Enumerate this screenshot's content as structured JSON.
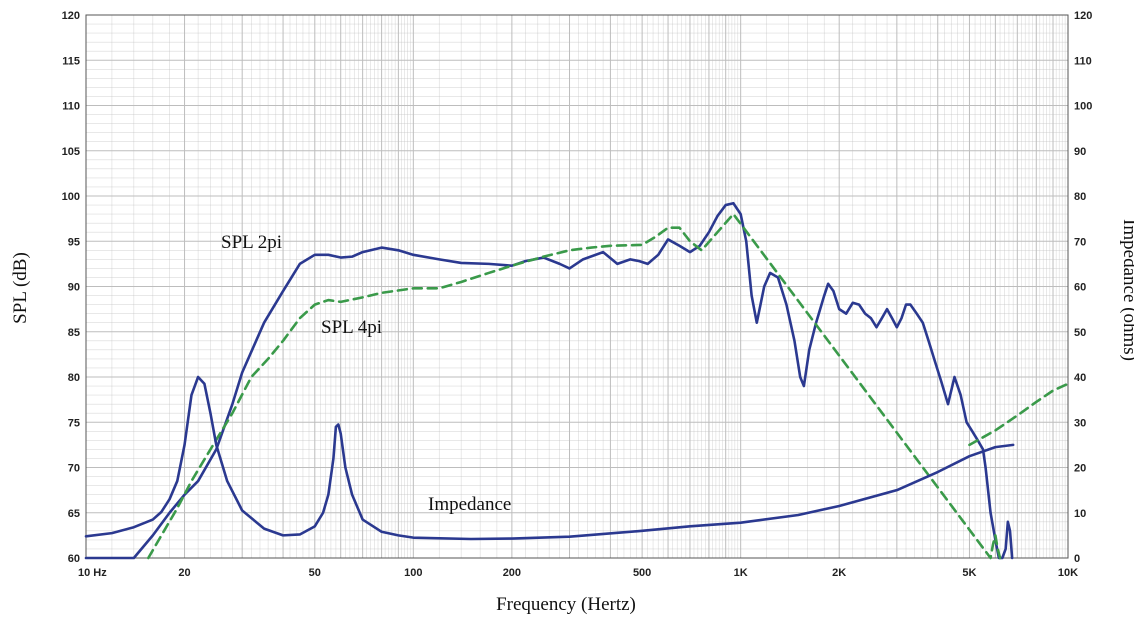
{
  "chart_data": {
    "type": "line",
    "xlabel": "Frequency (Hertz)",
    "ylabel_left": "SPL (dB)",
    "ylabel_right": "Impedance (ohms)",
    "x_scale": "log",
    "xlim": [
      10,
      10000
    ],
    "ylim_left": [
      60,
      120
    ],
    "ylim_right": [
      0,
      120
    ],
    "x_ticks": [
      {
        "value": 10,
        "label": "10  Hz"
      },
      {
        "value": 20,
        "label": "20"
      },
      {
        "value": 50,
        "label": "50"
      },
      {
        "value": 100,
        "label": "100"
      },
      {
        "value": 200,
        "label": "200"
      },
      {
        "value": 500,
        "label": "500"
      },
      {
        "value": 1000,
        "label": "1K"
      },
      {
        "value": 2000,
        "label": "2K"
      },
      {
        "value": 5000,
        "label": "5K"
      },
      {
        "value": 10000,
        "label": "10K"
      }
    ],
    "y_ticks_left": [
      60,
      65,
      70,
      75,
      80,
      85,
      90,
      95,
      100,
      105,
      110,
      115,
      120
    ],
    "y_ticks_right": [
      0,
      10,
      20,
      30,
      40,
      50,
      60,
      70,
      80,
      90,
      100,
      110,
      120
    ],
    "grid": true,
    "colors": {
      "spl_2pi": "#2b3990",
      "spl_4pi": "#3a9a4a",
      "impedance": "#2b3990",
      "grid": "#bdbdbd"
    },
    "series": [
      {
        "name": "SPL 2pi",
        "axis": "left",
        "style": "solid",
        "points": [
          [
            10,
            60
          ],
          [
            14,
            60
          ],
          [
            16,
            62.5
          ],
          [
            18,
            65
          ],
          [
            20,
            67
          ],
          [
            22,
            68.5
          ],
          [
            25,
            72
          ],
          [
            28,
            77
          ],
          [
            30,
            80.5
          ],
          [
            35,
            86
          ],
          [
            40,
            89.5
          ],
          [
            45,
            92.5
          ],
          [
            50,
            93.5
          ],
          [
            55,
            93.5
          ],
          [
            60,
            93.2
          ],
          [
            65,
            93.3
          ],
          [
            70,
            93.8
          ],
          [
            80,
            94.3
          ],
          [
            90,
            94
          ],
          [
            100,
            93.5
          ],
          [
            120,
            93
          ],
          [
            140,
            92.6
          ],
          [
            170,
            92.5
          ],
          [
            200,
            92.3
          ],
          [
            220,
            92.8
          ],
          [
            250,
            93.2
          ],
          [
            280,
            92.5
          ],
          [
            300,
            92
          ],
          [
            330,
            93
          ],
          [
            380,
            93.8
          ],
          [
            420,
            92.5
          ],
          [
            460,
            93
          ],
          [
            490,
            92.8
          ],
          [
            520,
            92.5
          ],
          [
            560,
            93.5
          ],
          [
            600,
            95.2
          ],
          [
            650,
            94.5
          ],
          [
            700,
            93.8
          ],
          [
            750,
            94.5
          ],
          [
            800,
            96
          ],
          [
            850,
            97.8
          ],
          [
            900,
            99
          ],
          [
            950,
            99.2
          ],
          [
            1000,
            98
          ],
          [
            1040,
            95
          ],
          [
            1080,
            89
          ],
          [
            1120,
            86
          ],
          [
            1180,
            90
          ],
          [
            1230,
            91.5
          ],
          [
            1300,
            91
          ],
          [
            1380,
            88
          ],
          [
            1460,
            84
          ],
          [
            1520,
            80
          ],
          [
            1560,
            79
          ],
          [
            1620,
            83
          ],
          [
            1700,
            86
          ],
          [
            1800,
            89
          ],
          [
            1850,
            90.3
          ],
          [
            1920,
            89.5
          ],
          [
            2000,
            87.5
          ],
          [
            2100,
            87
          ],
          [
            2200,
            88.2
          ],
          [
            2300,
            88
          ],
          [
            2400,
            87
          ],
          [
            2500,
            86.5
          ],
          [
            2600,
            85.5
          ],
          [
            2700,
            86.5
          ],
          [
            2800,
            87.5
          ],
          [
            2900,
            86.5
          ],
          [
            3000,
            85.5
          ],
          [
            3100,
            86.5
          ],
          [
            3200,
            88
          ],
          [
            3300,
            88
          ],
          [
            3450,
            87
          ],
          [
            3600,
            86
          ],
          [
            3750,
            84
          ],
          [
            3900,
            82
          ],
          [
            4100,
            79.5
          ],
          [
            4300,
            77
          ],
          [
            4500,
            80
          ],
          [
            4700,
            78
          ],
          [
            4900,
            75
          ],
          [
            5100,
            74
          ],
          [
            5300,
            73
          ],
          [
            5500,
            72
          ],
          [
            5600,
            70
          ],
          [
            5800,
            65
          ],
          [
            6000,
            62
          ],
          [
            6150,
            60
          ],
          [
            6300,
            60
          ],
          [
            6450,
            61
          ],
          [
            6550,
            64
          ],
          [
            6650,
            63
          ],
          [
            6750,
            60
          ]
        ]
      },
      {
        "name": "SPL 4pi",
        "axis": "left",
        "style": "dashed",
        "points": [
          [
            15.5,
            60
          ],
          [
            17,
            62.5
          ],
          [
            19,
            65.5
          ],
          [
            21,
            68.5
          ],
          [
            24,
            72
          ],
          [
            28,
            76
          ],
          [
            32,
            80
          ],
          [
            36,
            82
          ],
          [
            40,
            84
          ],
          [
            45,
            86.5
          ],
          [
            50,
            88
          ],
          [
            55,
            88.5
          ],
          [
            60,
            88.3
          ],
          [
            70,
            88.8
          ],
          [
            80,
            89.3
          ],
          [
            100,
            89.8
          ],
          [
            120,
            89.8
          ],
          [
            140,
            90.5
          ],
          [
            170,
            91.5
          ],
          [
            200,
            92.3
          ],
          [
            250,
            93.3
          ],
          [
            300,
            94
          ],
          [
            350,
            94.3
          ],
          [
            400,
            94.5
          ],
          [
            500,
            94.6
          ],
          [
            550,
            95.5
          ],
          [
            600,
            96.5
          ],
          [
            650,
            96.5
          ],
          [
            700,
            95
          ],
          [
            760,
            94
          ],
          [
            840,
            95.8
          ],
          [
            950,
            98
          ],
          [
            5800,
            60
          ],
          [
            5900,
            61.5
          ],
          [
            6000,
            62.5
          ],
          [
            6100,
            61
          ],
          [
            6200,
            60
          ]
        ]
      },
      {
        "name": "SPL 4pi (extension)",
        "axis": "right",
        "style": "dashed",
        "points": [
          [
            5000,
            25
          ],
          [
            6000,
            28.2
          ],
          [
            7000,
            31.5
          ],
          [
            8000,
            34.5
          ],
          [
            9000,
            37
          ],
          [
            10000,
            38.5
          ]
        ]
      },
      {
        "name": "Impedance",
        "axis": "right",
        "style": "solid",
        "points": [
          [
            10,
            4.8
          ],
          [
            12,
            5.5
          ],
          [
            14,
            6.8
          ],
          [
            16,
            8.5
          ],
          [
            17,
            10.2
          ],
          [
            18,
            13
          ],
          [
            19,
            17
          ],
          [
            20,
            25
          ],
          [
            21,
            36
          ],
          [
            22,
            40
          ],
          [
            23,
            38.5
          ],
          [
            24,
            32
          ],
          [
            25,
            25
          ],
          [
            27,
            17
          ],
          [
            30,
            10.5
          ],
          [
            35,
            6.5
          ],
          [
            40,
            5
          ],
          [
            45,
            5.2
          ],
          [
            50,
            7
          ],
          [
            53,
            10
          ],
          [
            55,
            14
          ],
          [
            57,
            22
          ],
          [
            58,
            29
          ],
          [
            59,
            29.5
          ],
          [
            60,
            27.5
          ],
          [
            62,
            20
          ],
          [
            65,
            14
          ],
          [
            70,
            8.5
          ],
          [
            80,
            5.8
          ],
          [
            90,
            5
          ],
          [
            100,
            4.5
          ],
          [
            150,
            4.2
          ],
          [
            200,
            4.3
          ],
          [
            300,
            4.7
          ],
          [
            500,
            6
          ],
          [
            700,
            7
          ],
          [
            1000,
            7.8
          ],
          [
            1500,
            9.5
          ],
          [
            2000,
            11.5
          ],
          [
            3000,
            15
          ],
          [
            4000,
            19
          ],
          [
            5000,
            22.5
          ],
          [
            6000,
            24.5
          ],
          [
            6800,
            25
          ]
        ]
      }
    ]
  },
  "labels": {
    "spl_2pi": "SPL 2pi",
    "spl_4pi": "SPL 4pi",
    "impedance": "Impedance"
  }
}
